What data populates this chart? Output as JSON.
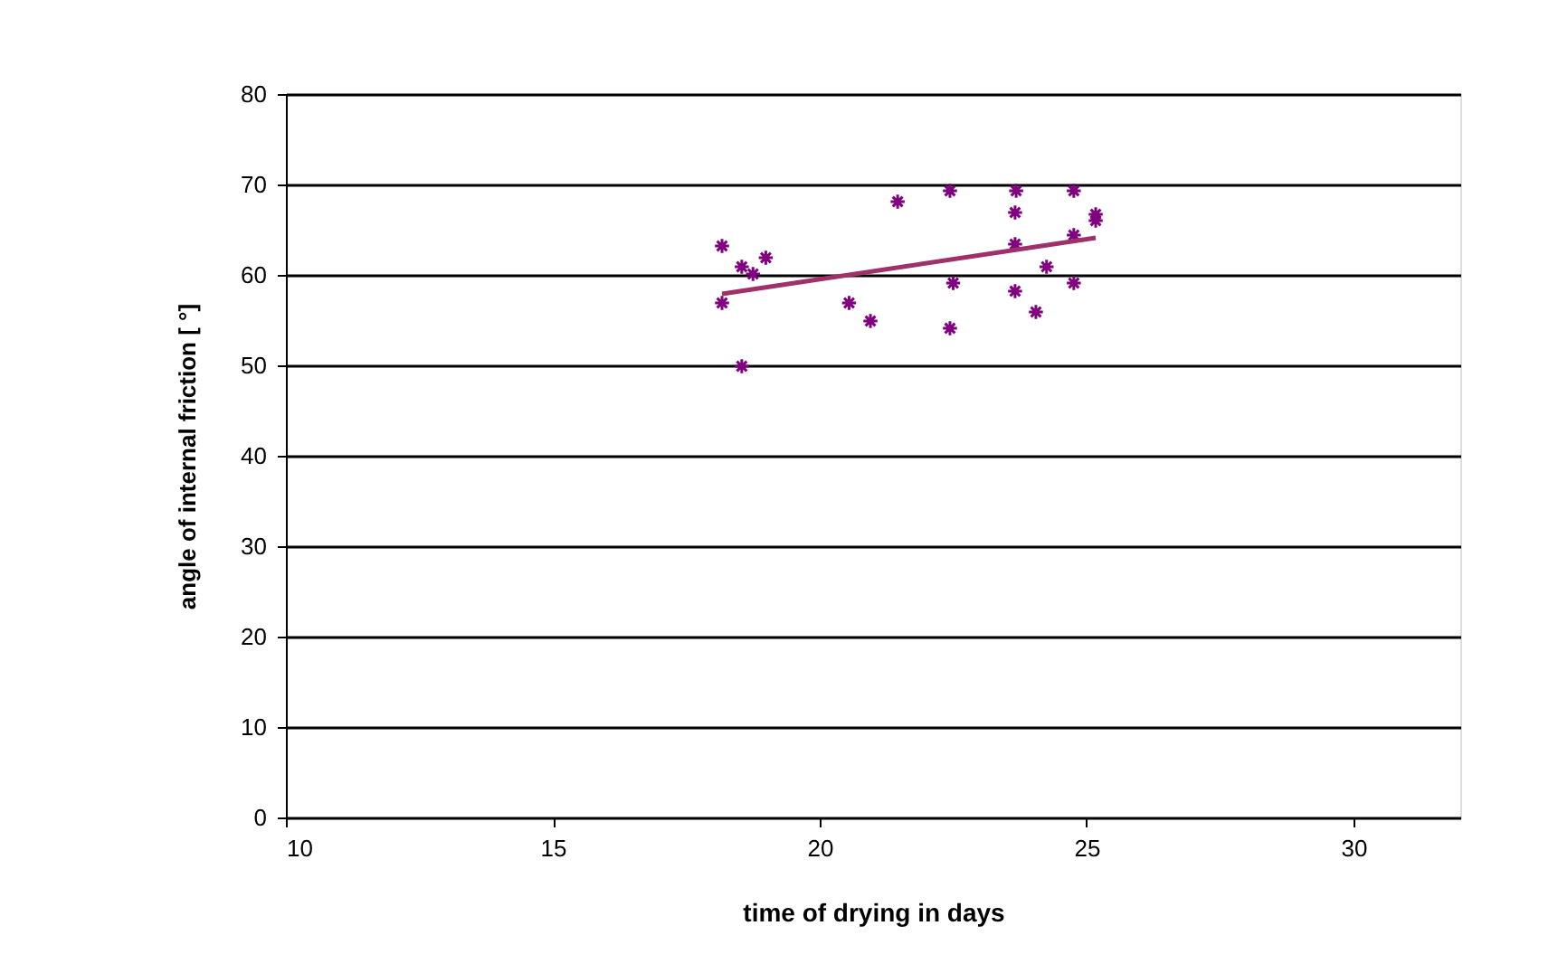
{
  "chart_data": {
    "type": "scatter",
    "xlabel": "time of drying in days",
    "ylabel": "angle of internal friction [ °]",
    "xlim": [
      10,
      32
    ],
    "xticks": [
      10,
      15,
      20,
      25,
      30
    ],
    "ylim": [
      0,
      80
    ],
    "yticks": [
      0,
      10,
      20,
      30,
      40,
      50,
      60,
      70,
      80
    ],
    "grid": "y",
    "marker": "cross",
    "series": [
      {
        "color": "#800080",
        "x": [
          18.17,
          18.54,
          18.75,
          18.99,
          18.17,
          18.54,
          20.55,
          20.95,
          21.46,
          22.44,
          22.5,
          22.44,
          23.68,
          23.66,
          23.66,
          23.66,
          24.05,
          24.25,
          24.76,
          24.76,
          24.76,
          25.17,
          25.17
        ],
        "values": [
          63.2,
          60.9,
          60.1,
          61.9,
          56.9,
          49.9,
          56.9,
          54.9,
          68.1,
          69.3,
          59.1,
          54.1,
          69.3,
          66.9,
          63.4,
          58.2,
          55.9,
          60.9,
          69.3,
          64.4,
          59.1,
          66.7,
          66.0
        ]
      },
      {
        "type": "line",
        "color": "#a0306a",
        "x": [
          18.17,
          25.17
        ],
        "values": [
          57.9,
          64.1
        ],
        "marker": "none"
      }
    ]
  }
}
